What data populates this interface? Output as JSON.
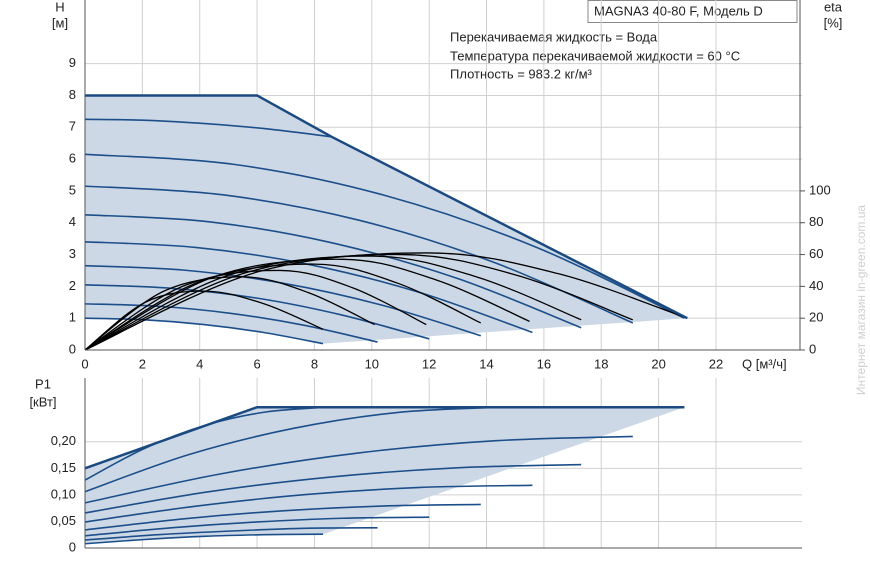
{
  "chart_data": [
    {
      "type": "line",
      "title": "MAGNA3 40-80 F, Модель D",
      "annotations": [
        "Перекачиваемая жидкость = Вода",
        "Температура перекачиваемой жидкости = 60 °C",
        "Плотность = 983.2 кг/м³"
      ],
      "xlabel": "Q [м³/ч]",
      "ylabel": "H",
      "ylabel_unit": "[м]",
      "y2label": "eta",
      "y2label_unit": "[%]",
      "xlim": [
        0,
        25
      ],
      "ylim": [
        0,
        11
      ],
      "y2lim": [
        0,
        220
      ],
      "xticks": [
        0,
        2,
        4,
        6,
        8,
        10,
        12,
        14,
        16,
        18,
        20,
        22
      ],
      "yticks": [
        0,
        1,
        2,
        3,
        4,
        5,
        6,
        7,
        8,
        9
      ],
      "y2ticks": [
        0,
        20,
        40,
        60,
        80,
        100
      ],
      "grid": true,
      "fill_color": "#cdd8e6",
      "envelope": {
        "color": "#1b4a80",
        "x": [
          0,
          6,
          8.6,
          21
        ],
        "values": [
          8,
          8,
          6.7,
          1.0
        ]
      },
      "series": [
        {
          "color": "#1c4f8a",
          "x": [
            0,
            2.08,
            4.15,
            6.23,
            8.3
          ],
          "values": [
            1.0,
            0.95,
            0.8,
            0.55,
            0.2
          ]
        },
        {
          "color": "#1c4f8a",
          "x": [
            0,
            2.55,
            5.1,
            7.65,
            10.2
          ],
          "values": [
            1.45,
            1.375,
            1.15,
            0.775,
            0.25
          ]
        },
        {
          "color": "#1c4f8a",
          "x": [
            0,
            3,
            6,
            9,
            12
          ],
          "values": [
            2.05,
            1.94,
            1.63,
            1.09,
            0.35
          ]
        },
        {
          "color": "#1c4f8a",
          "x": [
            0,
            3.45,
            6.9,
            10.35,
            13.8
          ],
          "values": [
            2.65,
            2.51,
            2.1,
            1.41,
            0.45
          ]
        },
        {
          "color": "#1c4f8a",
          "x": [
            0,
            3.9,
            7.8,
            11.7,
            15.6
          ],
          "values": [
            3.4,
            3.22,
            2.69,
            1.8,
            0.55
          ]
        },
        {
          "color": "#1c4f8a",
          "x": [
            0,
            4.33,
            8.65,
            12.98,
            17.3
          ],
          "values": [
            4.25,
            4.03,
            3.36,
            2.25,
            0.7
          ]
        },
        {
          "color": "#1c4f8a",
          "x": [
            0,
            4.78,
            9.55,
            14.33,
            19.1
          ],
          "values": [
            5.15,
            4.88,
            4.08,
            2.73,
            0.85
          ]
        },
        {
          "color": "#1c4f8a",
          "x": [
            0,
            5.23,
            10.45,
            15.68,
            20.9
          ],
          "values": [
            6.15,
            5.83,
            4.86,
            3.25,
            1.0
          ]
        },
        {
          "color": "#1c4f8a",
          "x": [
            0,
            2.15,
            4.3,
            6.45,
            8.6
          ],
          "values": [
            7.25,
            7.22,
            7.11,
            6.94,
            6.7
          ]
        },
        {
          "color": "#000000",
          "axis": "y2",
          "x": [
            0,
            2.1,
            4.2,
            6.25,
            8.3
          ],
          "values": [
            0,
            30,
            37,
            29,
            13
          ]
        },
        {
          "color": "#000000",
          "axis": "y2",
          "x": [
            0,
            2.75,
            5.5,
            7.8,
            10.1
          ],
          "values": [
            0,
            37,
            46,
            36,
            16
          ]
        },
        {
          "color": "#000000",
          "axis": "y2",
          "x": [
            0,
            3.4,
            6.8,
            9.35,
            11.9
          ],
          "values": [
            0,
            40,
            50,
            39,
            16
          ]
        },
        {
          "color": "#000000",
          "axis": "y2",
          "x": [
            0,
            4,
            8,
            10.9,
            13.8
          ],
          "values": [
            0,
            43,
            54,
            42,
            17
          ]
        },
        {
          "color": "#000000",
          "axis": "y2",
          "x": [
            0,
            4.5,
            9,
            12.25,
            15.5
          ],
          "values": [
            0,
            46,
            57,
            44,
            18
          ]
        },
        {
          "color": "#000000",
          "axis": "y2",
          "x": [
            0,
            5,
            10,
            13.65,
            17.3
          ],
          "values": [
            0,
            47,
            59,
            46,
            19
          ]
        },
        {
          "color": "#000000",
          "axis": "y2",
          "x": [
            0,
            5.5,
            11,
            15.05,
            19.1
          ],
          "values": [
            0,
            48,
            60,
            47,
            19
          ]
        },
        {
          "color": "#000000",
          "axis": "y2",
          "x": [
            0,
            6,
            12,
            16.5,
            21
          ],
          "values": [
            0,
            49,
            61,
            48,
            20
          ]
        }
      ]
    },
    {
      "type": "line",
      "ylabel": "P1",
      "ylabel_unit": "[кВт]",
      "xlim": [
        0,
        25
      ],
      "ylim": [
        0,
        0.32
      ],
      "yticks": [
        0,
        {
          "value": 0.05,
          "label": "0,05"
        },
        {
          "value": 0.1,
          "label": "0,10"
        },
        {
          "value": 0.15,
          "label": "0,15"
        },
        {
          "value": 0.2,
          "label": "0,20"
        }
      ],
      "grid": true,
      "fill_color": "#cdd8e6",
      "envelope": {
        "color": "#1b4a80",
        "x": [
          0,
          6,
          20.9
        ],
        "values": [
          0.15,
          0.265,
          0.265
        ]
      },
      "series": [
        {
          "color": "#1c4f8a",
          "x": [
            0,
            2.08,
            4.15,
            6.23,
            8.3
          ],
          "values": [
            0.008,
            0.016,
            0.022,
            0.025,
            0.026
          ]
        },
        {
          "color": "#1c4f8a",
          "x": [
            0,
            2.55,
            5.1,
            7.65,
            10.2
          ],
          "values": [
            0.015,
            0.025,
            0.032,
            0.037,
            0.038
          ]
        },
        {
          "color": "#1c4f8a",
          "x": [
            0,
            3,
            6,
            9,
            12
          ],
          "values": [
            0.023,
            0.038,
            0.049,
            0.056,
            0.058
          ]
        },
        {
          "color": "#1c4f8a",
          "x": [
            0,
            3.45,
            6.9,
            10.35,
            13.8
          ],
          "values": [
            0.034,
            0.055,
            0.07,
            0.079,
            0.082
          ]
        },
        {
          "color": "#1c4f8a",
          "x": [
            0,
            3.9,
            7.8,
            11.7,
            15.6
          ],
          "values": [
            0.049,
            0.079,
            0.101,
            0.114,
            0.118
          ]
        },
        {
          "color": "#1c4f8a",
          "x": [
            0,
            4.33,
            8.65,
            12.98,
            17.3
          ],
          "values": [
            0.066,
            0.106,
            0.134,
            0.151,
            0.157
          ]
        },
        {
          "color": "#1c4f8a",
          "x": [
            0,
            4.78,
            9.55,
            14.33,
            19.1
          ],
          "values": [
            0.085,
            0.14,
            0.179,
            0.202,
            0.21
          ]
        },
        {
          "color": "#1c4f8a",
          "x": [
            0,
            3.63,
            7.25,
            10.88,
            14.5
          ],
          "values": [
            0.106,
            0.176,
            0.225,
            0.255,
            0.265
          ]
        },
        {
          "color": "#1c4f8a",
          "x": [
            0,
            2.1,
            4.2,
            6.3,
            8.4
          ],
          "values": [
            0.128,
            0.188,
            0.231,
            0.256,
            0.265
          ]
        }
      ]
    }
  ],
  "watermark": "Интернет магазин  in-green.com.ua"
}
